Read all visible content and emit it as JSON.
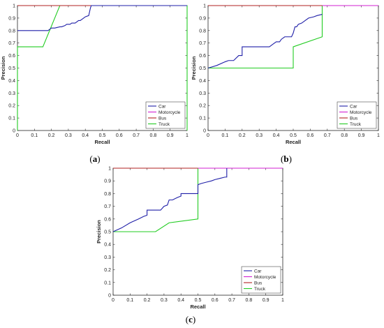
{
  "chart_data": [
    {
      "type": "line",
      "panel_label": "(a)",
      "xlabel": "Recall",
      "ylabel": "Precision",
      "xlim": [
        0,
        1
      ],
      "ylim": [
        0,
        1
      ],
      "xticks": [
        "0",
        "0.1",
        "0.2",
        "0.3",
        "0.4",
        "0.5",
        "0.6",
        "0.7",
        "0.8",
        "0.9",
        "1"
      ],
      "yticks": [
        "0",
        "0.1",
        "0.2",
        "0.3",
        "0.4",
        "0.5",
        "0.6",
        "0.7",
        "0.8",
        "0.9",
        "1"
      ],
      "legend_position": "bottom-right",
      "series": [
        {
          "name": "Car",
          "color": "#1f1fa8",
          "x": [
            0,
            0.18,
            0.19,
            0.2,
            0.22,
            0.25,
            0.26,
            0.28,
            0.29,
            0.31,
            0.32,
            0.34,
            0.35,
            0.36,
            0.37,
            0.38,
            0.39,
            0.4,
            0.42,
            0.425,
            0.43,
            0.435,
            1
          ],
          "y": [
            0.8,
            0.8,
            0.81,
            0.82,
            0.82,
            0.83,
            0.83,
            0.84,
            0.85,
            0.85,
            0.86,
            0.86,
            0.87,
            0.88,
            0.88,
            0.89,
            0.9,
            0.91,
            0.92,
            0.95,
            0.98,
            1.0,
            1.0
          ]
        },
        {
          "name": "Motorcycle",
          "color": "#d21fd2",
          "x": [
            0,
            1
          ],
          "y": [
            1,
            1
          ]
        },
        {
          "name": "Bus",
          "color": "#b22222",
          "x": [
            0,
            1
          ],
          "y": [
            1,
            1
          ]
        },
        {
          "name": "Truck",
          "color": "#22cc22",
          "x": [
            0,
            0,
            0.15,
            0.25,
            1,
            1
          ],
          "y": [
            0,
            0.67,
            0.67,
            1.0,
            1.0,
            0
          ]
        }
      ]
    },
    {
      "type": "line",
      "panel_label": "(b)",
      "xlabel": "Recall",
      "ylabel": "Precision",
      "xlim": [
        0,
        1
      ],
      "ylim": [
        0,
        1
      ],
      "xticks": [
        "0",
        "0.1",
        "0.2",
        "0.3",
        "0.4",
        "0.5",
        "0.6",
        "0.7",
        "0.8",
        "0.9",
        "1"
      ],
      "yticks": [
        "0",
        "0.1",
        "0.2",
        "0.3",
        "0.4",
        "0.5",
        "0.6",
        "0.7",
        "0.8",
        "0.9",
        "1"
      ],
      "legend_position": "bottom-right",
      "series": [
        {
          "name": "Car",
          "color": "#1f1fa8",
          "x": [
            0,
            0.05,
            0.1,
            0.12,
            0.15,
            0.18,
            0.2,
            0.2,
            0.3,
            0.36,
            0.38,
            0.4,
            0.42,
            0.43,
            0.45,
            0.48,
            0.49,
            0.5,
            0.51,
            0.52,
            0.53,
            0.55,
            0.57,
            0.59,
            0.62,
            0.64,
            0.67
          ],
          "y": [
            0.5,
            0.52,
            0.55,
            0.56,
            0.56,
            0.6,
            0.6,
            0.67,
            0.67,
            0.67,
            0.69,
            0.71,
            0.71,
            0.73,
            0.75,
            0.75,
            0.75,
            0.78,
            0.83,
            0.83,
            0.85,
            0.86,
            0.88,
            0.9,
            0.91,
            0.92,
            0.93
          ]
        },
        {
          "name": "Motorcycle",
          "color": "#d21fd2",
          "x": [
            0,
            1
          ],
          "y": [
            1,
            1
          ]
        },
        {
          "name": "Bus",
          "color": "#b22222",
          "x": [
            0,
            0.67
          ],
          "y": [
            1,
            1
          ]
        },
        {
          "name": "Truck",
          "color": "#22cc22",
          "x": [
            0,
            0.5,
            0.5,
            0.67,
            0.67,
            1
          ],
          "y": [
            0.5,
            0.5,
            0.67,
            0.75,
            1.0,
            1.0
          ]
        }
      ]
    },
    {
      "type": "line",
      "panel_label": "(c)",
      "xlabel": "Recall",
      "ylabel": "Precision",
      "xlim": [
        0,
        1
      ],
      "ylim": [
        0,
        1
      ],
      "xticks": [
        "0",
        "0.1",
        "0.2",
        "0.3",
        "0.4",
        "0.5",
        "0.6",
        "0.7",
        "0.8",
        "0.9",
        "1"
      ],
      "yticks": [
        "0",
        "0.1",
        "0.2",
        "0.3",
        "0.4",
        "0.5",
        "0.6",
        "0.7",
        "0.8",
        "0.9",
        "1"
      ],
      "legend_position": "bottom-right",
      "series": [
        {
          "name": "Car",
          "color": "#1f1fa8",
          "x": [
            0,
            0.05,
            0.1,
            0.15,
            0.18,
            0.2,
            0.2,
            0.25,
            0.28,
            0.3,
            0.32,
            0.33,
            0.35,
            0.38,
            0.4,
            0.4,
            0.45,
            0.5,
            0.5,
            0.52,
            0.55,
            0.58,
            0.6,
            0.63,
            0.66,
            0.67,
            0.67
          ],
          "y": [
            0.5,
            0.53,
            0.57,
            0.6,
            0.62,
            0.63,
            0.67,
            0.67,
            0.67,
            0.7,
            0.71,
            0.75,
            0.75,
            0.77,
            0.78,
            0.8,
            0.8,
            0.8,
            0.87,
            0.88,
            0.89,
            0.9,
            0.91,
            0.92,
            0.93,
            0.93,
            1.0
          ]
        },
        {
          "name": "Motorcycle",
          "color": "#d21fd2",
          "x": [
            0,
            1
          ],
          "y": [
            1,
            1
          ]
        },
        {
          "name": "Bus",
          "color": "#b22222",
          "x": [
            0,
            0.5
          ],
          "y": [
            1,
            1
          ]
        },
        {
          "name": "Truck",
          "color": "#22cc22",
          "x": [
            0,
            0.25,
            0.33,
            0.5,
            0.5,
            1
          ],
          "y": [
            0.5,
            0.5,
            0.57,
            0.6,
            1.0,
            1.0
          ]
        }
      ]
    }
  ]
}
